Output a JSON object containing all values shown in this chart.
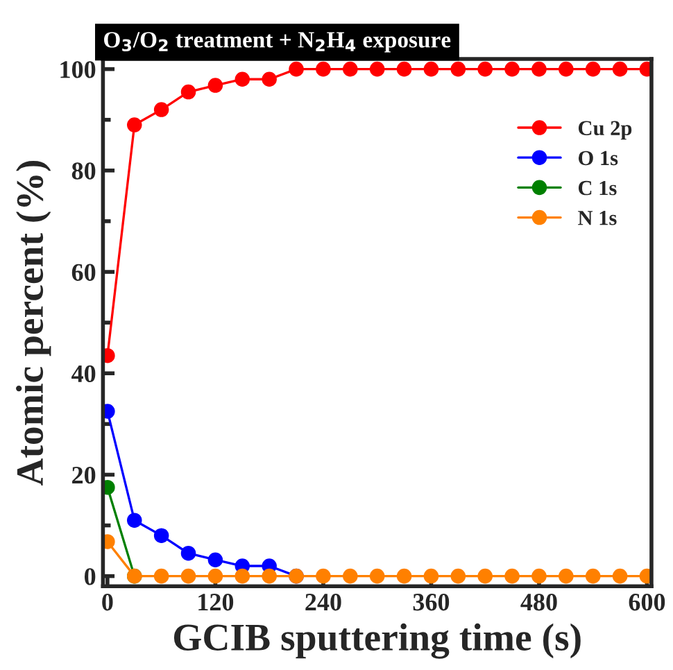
{
  "chart_data": {
    "type": "line",
    "title": "O$_{3}$/O$_{2}$ treatment + N$_{2}$H$_{4}$ exposure",
    "xlabel": "GCIB sputtering time (s)",
    "ylabel": "Atomic percent (%)",
    "x": [
      0,
      30,
      60,
      90,
      120,
      150,
      180,
      210,
      240,
      270,
      300,
      330,
      360,
      390,
      420,
      450,
      480,
      510,
      540,
      570,
      600
    ],
    "series": [
      {
        "name": "Cu 2p",
        "color": "#ff0000",
        "values": [
          43.5,
          89,
          92,
          95.5,
          96.8,
          98,
          98,
          100,
          100,
          100,
          100,
          100,
          100,
          100,
          100,
          100,
          100,
          100,
          100,
          100,
          100
        ]
      },
      {
        "name": "O 1s",
        "color": "#0000ff",
        "values": [
          32.5,
          11,
          8,
          4.5,
          3.2,
          2,
          2,
          0,
          null,
          null,
          null,
          null,
          null,
          null,
          null,
          null,
          null,
          null,
          null,
          null,
          null
        ]
      },
      {
        "name": "C 1s",
        "color": "#008000",
        "values": [
          17.5,
          0,
          null,
          null,
          null,
          null,
          null,
          null,
          null,
          null,
          null,
          null,
          null,
          null,
          null,
          null,
          null,
          null,
          null,
          null,
          null
        ]
      },
      {
        "name": "N 1s",
        "color": "#ff8000",
        "values": [
          6.8,
          0,
          0,
          0,
          0,
          0,
          0,
          0,
          0,
          0,
          0,
          0,
          0,
          0,
          0,
          0,
          0,
          0,
          0,
          0,
          0
        ]
      }
    ],
    "xlim": [
      -5,
      605
    ],
    "xticks": [
      0,
      120,
      240,
      360,
      480,
      600
    ],
    "ylim": [
      -2,
      102
    ],
    "yticks": [
      0,
      20,
      40,
      60,
      80,
      100
    ],
    "marker": "circle",
    "line_style": "solid",
    "legend": "top right",
    "grid": false
  }
}
